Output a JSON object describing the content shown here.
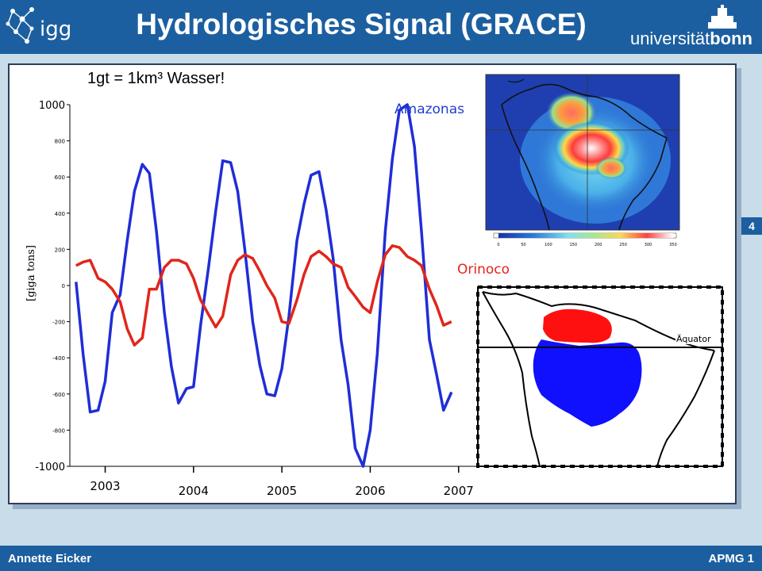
{
  "header": {
    "title": "Hydrologisches Signal (GRACE)",
    "logo_left_text": "igg",
    "logo_right_text_a": "universität",
    "logo_right_text_b": "bonn"
  },
  "slide_number": "4",
  "footer": {
    "author": "Annette Eicker",
    "course": "APMG 1"
  },
  "note": "1gt = 1km³ Wasser!",
  "colors": {
    "amazonas": "#1f2ed6",
    "orinoco": "#e0261b",
    "header": "#1c5fa0"
  },
  "maps": {
    "equator_label": "Äquator",
    "colorbar_ticks": [
      "0",
      "50",
      "100",
      "150",
      "200",
      "250",
      "300",
      "350"
    ]
  },
  "chart_data": {
    "type": "line",
    "ylabel": "[giga tons]",
    "ylim": [
      -1000,
      1000
    ],
    "ytick_labels": [
      "1000",
      "800",
      "600",
      "400",
      "200",
      "0",
      "-200",
      "-400",
      "-600",
      "-800",
      "-1000"
    ],
    "xtick_labels": [
      "2003",
      "2004",
      "2005",
      "2006",
      "2007"
    ],
    "xlim": [
      2002.6,
      2007.2
    ],
    "series": [
      {
        "name": "Amazonas",
        "x": [
          2002.67,
          2002.75,
          2002.83,
          2002.92,
          2003.0,
          2003.08,
          2003.17,
          2003.25,
          2003.33,
          2003.42,
          2003.5,
          2003.58,
          2003.67,
          2003.75,
          2003.83,
          2003.92,
          2004.0,
          2004.08,
          2004.17,
          2004.25,
          2004.33,
          2004.42,
          2004.5,
          2004.58,
          2004.67,
          2004.75,
          2004.83,
          2004.92,
          2005.0,
          2005.08,
          2005.17,
          2005.25,
          2005.33,
          2005.42,
          2005.5,
          2005.58,
          2005.67,
          2005.75,
          2005.83,
          2005.92,
          2006.0,
          2006.08,
          2006.17,
          2006.25,
          2006.33,
          2006.42,
          2006.5,
          2006.58,
          2006.67,
          2006.75,
          2006.83,
          2006.92
        ],
        "values": [
          20,
          -380,
          -700,
          -690,
          -530,
          -150,
          -50,
          250,
          520,
          670,
          620,
          300,
          -150,
          -450,
          -650,
          -570,
          -560,
          -220,
          100,
          410,
          690,
          680,
          520,
          200,
          -200,
          -440,
          -600,
          -610,
          -460,
          -170,
          250,
          450,
          610,
          630,
          420,
          150,
          -300,
          -550,
          -900,
          -1000,
          -800,
          -380,
          300,
          700,
          970,
          1000,
          770,
          300,
          -300,
          -490,
          -690,
          -590
        ]
      },
      {
        "name": "Orinoco",
        "x": [
          2002.67,
          2002.75,
          2002.83,
          2002.92,
          2003.0,
          2003.08,
          2003.17,
          2003.25,
          2003.33,
          2003.42,
          2003.5,
          2003.58,
          2003.67,
          2003.75,
          2003.83,
          2003.92,
          2004.0,
          2004.08,
          2004.17,
          2004.25,
          2004.33,
          2004.42,
          2004.5,
          2004.58,
          2004.67,
          2004.75,
          2004.83,
          2004.92,
          2005.0,
          2005.08,
          2005.17,
          2005.25,
          2005.33,
          2005.42,
          2005.5,
          2005.58,
          2005.67,
          2005.75,
          2005.83,
          2005.92,
          2006.0,
          2006.08,
          2006.17,
          2006.25,
          2006.33,
          2006.42,
          2006.5,
          2006.58,
          2006.67,
          2006.75,
          2006.83,
          2006.92
        ],
        "values": [
          110,
          130,
          140,
          40,
          20,
          -20,
          -90,
          -240,
          -330,
          -290,
          -20,
          -20,
          100,
          140,
          140,
          120,
          40,
          -80,
          -160,
          -230,
          -170,
          60,
          140,
          170,
          150,
          80,
          0,
          -70,
          -200,
          -210,
          -80,
          60,
          160,
          190,
          160,
          120,
          100,
          -10,
          -60,
          -120,
          -150,
          20,
          170,
          220,
          210,
          160,
          140,
          110,
          -20,
          -110,
          -220,
          -200
        ]
      }
    ]
  }
}
